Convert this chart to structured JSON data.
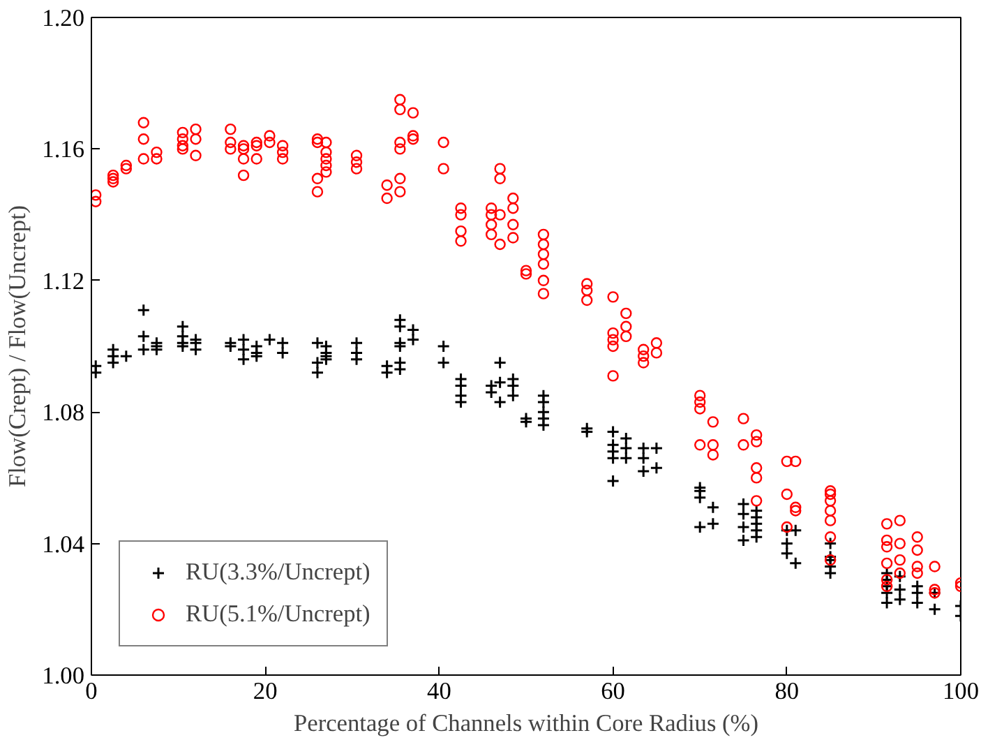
{
  "chart_data": {
    "type": "scatter",
    "xlabel": "Percentage of Channels within Core Radius (%)",
    "ylabel": "Flow(Crept) / Flow(Uncrept)",
    "xlim": [
      0,
      100
    ],
    "xticks": [
      0,
      20,
      40,
      60,
      80,
      100
    ],
    "ylim": [
      1.0,
      1.2
    ],
    "yticks": [
      {
        "value": 1.0,
        "label": "1.00"
      },
      {
        "value": 1.04,
        "label": "1.04"
      },
      {
        "value": 1.08,
        "label": "1.08"
      },
      {
        "value": 1.12,
        "label": "1.12"
      },
      {
        "value": 1.16,
        "label": "1.16"
      },
      {
        "value": 1.2,
        "label": "1.20"
      }
    ],
    "grid": false,
    "legend": "bottom left",
    "series": [
      {
        "name": "RU(3.3%/Uncrept)",
        "color": "#000000",
        "marker": "cross",
        "x": [
          0.5,
          0.5,
          2.5,
          2.5,
          2.5,
          4,
          6,
          6,
          6,
          7.5,
          7.5,
          7.5,
          10.5,
          10.5,
          10.5,
          10.5,
          12,
          12,
          12,
          16,
          16,
          17.5,
          17.5,
          17.5,
          19,
          19,
          19,
          20.5,
          22,
          22,
          26,
          26,
          26,
          27,
          27,
          27,
          27,
          30.5,
          30.5,
          30.5,
          34,
          34,
          35.5,
          35.5,
          35.5,
          35.5,
          35.5,
          35.5,
          37,
          37,
          40.5,
          40.5,
          42.5,
          42.5,
          42.5,
          42.5,
          46,
          46,
          47,
          47,
          47,
          48.5,
          48.5,
          48.5,
          50,
          50,
          52,
          52,
          52,
          52,
          52,
          57,
          57,
          60,
          60,
          60,
          60,
          60,
          61.5,
          61.5,
          61.5,
          63.5,
          63.5,
          63.5,
          65,
          65,
          70,
          70,
          70,
          70,
          71.5,
          71.5,
          75,
          75,
          75,
          75,
          76.5,
          76.5,
          76.5,
          76.5,
          76.5,
          80,
          80,
          80,
          81,
          81,
          85,
          85,
          85,
          85,
          85,
          91.5,
          91.5,
          91.5,
          91.5,
          91.5,
          93,
          93,
          93,
          95,
          95,
          95,
          97,
          97,
          100,
          100
        ],
        "values": [
          1.094,
          1.092,
          1.099,
          1.097,
          1.095,
          1.097,
          1.111,
          1.103,
          1.099,
          1.101,
          1.1,
          1.099,
          1.106,
          1.103,
          1.101,
          1.1,
          1.102,
          1.101,
          1.099,
          1.101,
          1.1,
          1.102,
          1.099,
          1.096,
          1.1,
          1.098,
          1.097,
          1.102,
          1.101,
          1.098,
          1.101,
          1.095,
          1.092,
          1.1,
          1.098,
          1.097,
          1.096,
          1.101,
          1.098,
          1.096,
          1.094,
          1.092,
          1.108,
          1.106,
          1.101,
          1.1,
          1.095,
          1.093,
          1.105,
          1.102,
          1.1,
          1.095,
          1.09,
          1.088,
          1.085,
          1.083,
          1.088,
          1.086,
          1.095,
          1.089,
          1.083,
          1.09,
          1.088,
          1.085,
          1.078,
          1.077,
          1.085,
          1.083,
          1.08,
          1.078,
          1.076,
          1.075,
          1.074,
          1.074,
          1.07,
          1.068,
          1.066,
          1.059,
          1.072,
          1.069,
          1.066,
          1.069,
          1.066,
          1.062,
          1.069,
          1.063,
          1.057,
          1.056,
          1.054,
          1.045,
          1.051,
          1.046,
          1.052,
          1.049,
          1.045,
          1.041,
          1.05,
          1.048,
          1.046,
          1.044,
          1.042,
          1.044,
          1.04,
          1.037,
          1.044,
          1.034,
          1.04,
          1.036,
          1.035,
          1.033,
          1.031,
          1.031,
          1.029,
          1.027,
          1.025,
          1.022,
          1.03,
          1.026,
          1.023,
          1.027,
          1.025,
          1.022,
          1.025,
          1.02,
          1.021,
          1.018
        ]
      },
      {
        "name": "RU(5.1%/Uncrept)",
        "color": "#ff0000",
        "marker": "circle",
        "x": [
          0.5,
          0.5,
          2.5,
          2.5,
          2.5,
          4,
          4,
          6,
          6,
          6,
          7.5,
          7.5,
          10.5,
          10.5,
          10.5,
          10.5,
          12,
          12,
          12,
          16,
          16,
          16,
          17.5,
          17.5,
          17.5,
          17.5,
          19,
          19,
          19,
          20.5,
          20.5,
          22,
          22,
          22,
          26,
          26,
          26,
          26,
          27,
          27,
          27,
          27,
          27,
          30.5,
          30.5,
          30.5,
          34,
          34,
          35.5,
          35.5,
          35.5,
          35.5,
          35.5,
          35.5,
          37,
          37,
          37,
          40.5,
          40.5,
          42.5,
          42.5,
          42.5,
          42.5,
          46,
          46,
          46,
          46,
          47,
          47,
          47,
          47,
          48.5,
          48.5,
          48.5,
          48.5,
          50,
          50,
          52,
          52,
          52,
          52,
          52,
          52,
          57,
          57,
          57,
          60,
          60,
          60,
          60,
          60,
          61.5,
          61.5,
          61.5,
          63.5,
          63.5,
          63.5,
          65,
          65,
          70,
          70,
          70,
          70,
          71.5,
          71.5,
          71.5,
          75,
          75,
          76.5,
          76.5,
          76.5,
          76.5,
          76.5,
          80,
          80,
          80,
          81,
          81,
          81,
          85,
          85,
          85,
          85,
          85,
          85,
          85,
          91.5,
          91.5,
          91.5,
          91.5,
          91.5,
          91.5,
          93,
          93,
          93,
          93,
          95,
          95,
          95,
          95,
          97,
          97,
          97,
          100,
          100
        ],
        "values": [
          1.146,
          1.144,
          1.152,
          1.151,
          1.15,
          1.155,
          1.154,
          1.168,
          1.163,
          1.157,
          1.159,
          1.157,
          1.165,
          1.163,
          1.161,
          1.16,
          1.166,
          1.163,
          1.158,
          1.166,
          1.162,
          1.16,
          1.161,
          1.16,
          1.157,
          1.152,
          1.162,
          1.161,
          1.157,
          1.164,
          1.162,
          1.161,
          1.159,
          1.157,
          1.163,
          1.162,
          1.151,
          1.147,
          1.162,
          1.159,
          1.157,
          1.155,
          1.153,
          1.158,
          1.156,
          1.154,
          1.149,
          1.145,
          1.175,
          1.172,
          1.162,
          1.16,
          1.151,
          1.147,
          1.171,
          1.164,
          1.163,
          1.162,
          1.154,
          1.142,
          1.14,
          1.135,
          1.132,
          1.142,
          1.14,
          1.137,
          1.134,
          1.154,
          1.151,
          1.14,
          1.131,
          1.145,
          1.142,
          1.137,
          1.133,
          1.123,
          1.122,
          1.134,
          1.131,
          1.128,
          1.125,
          1.12,
          1.116,
          1.119,
          1.117,
          1.114,
          1.115,
          1.104,
          1.102,
          1.1,
          1.091,
          1.11,
          1.106,
          1.103,
          1.099,
          1.097,
          1.095,
          1.101,
          1.098,
          1.085,
          1.083,
          1.081,
          1.07,
          1.077,
          1.07,
          1.067,
          1.078,
          1.07,
          1.073,
          1.071,
          1.063,
          1.06,
          1.053,
          1.065,
          1.055,
          1.045,
          1.065,
          1.051,
          1.05,
          1.056,
          1.055,
          1.053,
          1.05,
          1.047,
          1.042,
          1.035,
          1.046,
          1.041,
          1.039,
          1.034,
          1.029,
          1.027,
          1.047,
          1.04,
          1.035,
          1.031,
          1.042,
          1.038,
          1.033,
          1.031,
          1.033,
          1.026,
          1.025,
          1.028,
          1.027
        ]
      }
    ]
  }
}
